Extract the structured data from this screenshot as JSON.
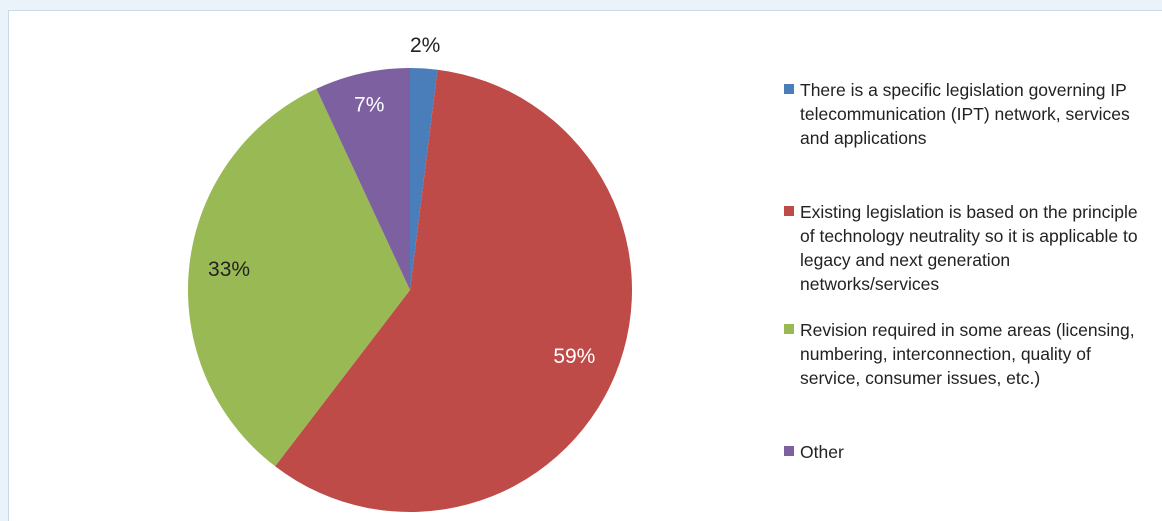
{
  "chart_data": {
    "type": "pie",
    "categories": [
      "There is a specific legislation governing IP telecommunication (IPT) network, services and applications",
      "Existing legislation is based on the principle of technology neutrality so it is applicable to legacy and next generation networks/services",
      "Revision required in some areas (licensing, numbering, interconnection, quality of service, consumer issues, etc.)",
      "Other"
    ],
    "values": [
      2,
      59,
      33,
      7
    ],
    "value_labels": [
      "2%",
      "59%",
      "33%",
      "7%"
    ],
    "colors": [
      "#4a7ebb",
      "#be4b48",
      "#98b954",
      "#7d60a0"
    ],
    "legend": "right"
  }
}
